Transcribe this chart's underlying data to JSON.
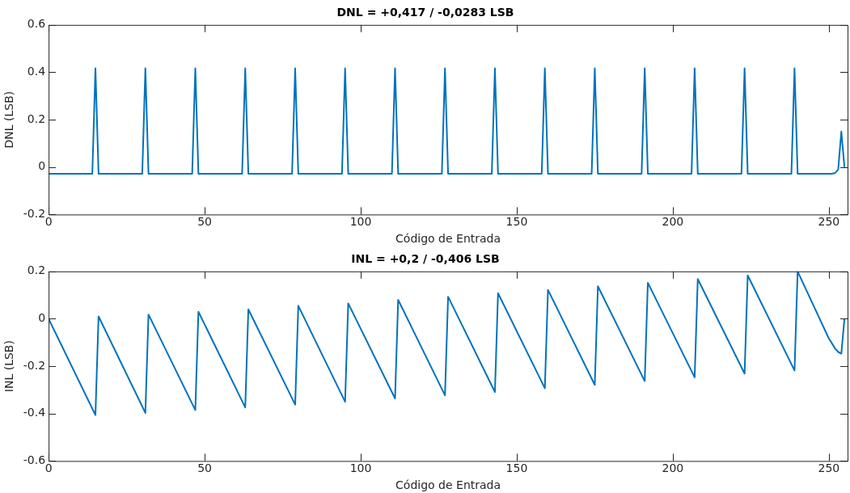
{
  "chart_data": [
    {
      "type": "line",
      "title": "DNL = +0,417 / -0,0283 LSB",
      "xlabel": "Código de Entrada",
      "ylabel": "DNL (LSB)",
      "xlim": [
        0,
        256
      ],
      "xticks": [
        0,
        50,
        100,
        150,
        200,
        250
      ],
      "ylim": [
        -0.2,
        0.6
      ],
      "yticks": [
        -0.2,
        0,
        0.2,
        0.4,
        0.6
      ],
      "grid": false,
      "legend": false,
      "series": [
        {
          "color": "#0072bd",
          "x": [
            0,
            14,
            15,
            16,
            30,
            31,
            32,
            46,
            47,
            48,
            62,
            63,
            64,
            78,
            79,
            80,
            94,
            95,
            96,
            110,
            111,
            112,
            126,
            127,
            128,
            142,
            143,
            144,
            158,
            159,
            160,
            174,
            175,
            176,
            190,
            191,
            192,
            206,
            207,
            208,
            222,
            223,
            224,
            238,
            239,
            240,
            251,
            252,
            253,
            254,
            255
          ],
          "values": [
            -0.0283,
            -0.0283,
            0.417,
            -0.0283,
            -0.0283,
            0.417,
            -0.0283,
            -0.0283,
            0.417,
            -0.0283,
            -0.0283,
            0.417,
            -0.0283,
            -0.0283,
            0.417,
            -0.0283,
            -0.0283,
            0.417,
            -0.0283,
            -0.0283,
            0.417,
            -0.0283,
            -0.0283,
            0.417,
            -0.0283,
            -0.0283,
            0.417,
            -0.0283,
            -0.0283,
            0.417,
            -0.0283,
            -0.0283,
            0.417,
            -0.0283,
            -0.0283,
            0.417,
            -0.0283,
            -0.0283,
            0.417,
            -0.0283,
            -0.0283,
            0.417,
            -0.0283,
            -0.0283,
            0.417,
            -0.0283,
            -0.028,
            -0.025,
            -0.01,
            0.15,
            0
          ]
        }
      ]
    },
    {
      "type": "line",
      "title": "INL = +0,2 / -0,406 LSB",
      "xlabel": "Código de Entrada",
      "ylabel": "INL (LSB)",
      "xlim": [
        0,
        256
      ],
      "xticks": [
        0,
        50,
        100,
        150,
        200,
        250
      ],
      "ylim": [
        -0.6,
        0.2
      ],
      "yticks": [
        -0.6,
        -0.4,
        -0.2,
        0,
        0.2
      ],
      "grid": false,
      "legend": false,
      "series": [
        {
          "color": "#0072bd",
          "x": [
            0,
            15,
            16,
            31,
            32,
            47,
            48,
            63,
            64,
            79,
            80,
            95,
            96,
            111,
            112,
            127,
            128,
            143,
            144,
            159,
            160,
            175,
            176,
            191,
            192,
            207,
            208,
            223,
            224,
            239,
            240,
            250,
            252,
            253,
            254,
            255
          ],
          "values": [
            0,
            -0.406,
            0.01,
            -0.397,
            0.018,
            -0.385,
            0.03,
            -0.374,
            0.04,
            -0.362,
            0.055,
            -0.35,
            0.065,
            -0.336,
            0.08,
            -0.323,
            0.093,
            -0.309,
            0.108,
            -0.293,
            0.122,
            -0.279,
            0.137,
            -0.263,
            0.152,
            -0.247,
            0.168,
            -0.231,
            0.183,
            -0.218,
            0.2,
            -0.083,
            -0.125,
            -0.14,
            -0.147,
            0
          ]
        }
      ]
    }
  ]
}
